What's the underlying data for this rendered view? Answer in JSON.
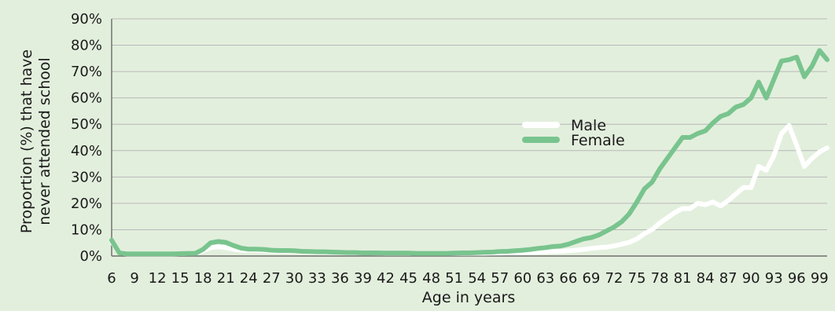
{
  "chart_data": {
    "type": "line",
    "xlabel": "Age in years",
    "ylabel": [
      "Proportion (%) that have",
      "never attended school"
    ],
    "ylim": [
      0,
      90
    ],
    "yticks": [
      "0%",
      "10%",
      "20%",
      "30%",
      "40%",
      "50%",
      "60%",
      "70%",
      "80%",
      "90%"
    ],
    "xticks": [
      "6",
      "9",
      "12",
      "15",
      "18",
      "21",
      "24",
      "27",
      "30",
      "33",
      "36",
      "39",
      "42",
      "45",
      "48",
      "51",
      "54",
      "57",
      "60",
      "63",
      "66",
      "69",
      "72",
      "75",
      "78",
      "81",
      "84",
      "87",
      "90",
      "93",
      "96",
      "99"
    ],
    "grid": true,
    "legend_position": "right-middle",
    "x": [
      6,
      7,
      8,
      9,
      10,
      11,
      12,
      13,
      14,
      15,
      16,
      17,
      18,
      19,
      20,
      21,
      22,
      23,
      24,
      25,
      26,
      27,
      28,
      29,
      30,
      31,
      32,
      33,
      34,
      35,
      36,
      37,
      38,
      39,
      40,
      41,
      42,
      43,
      44,
      45,
      46,
      47,
      48,
      49,
      50,
      51,
      52,
      53,
      54,
      55,
      56,
      57,
      58,
      59,
      60,
      61,
      62,
      63,
      64,
      65,
      66,
      67,
      68,
      69,
      70,
      71,
      72,
      73,
      74,
      75,
      76,
      77,
      78,
      79,
      80,
      81,
      82,
      83,
      84,
      85,
      86,
      87,
      88,
      89,
      90,
      91,
      92,
      93,
      94,
      95,
      96,
      97,
      98,
      99,
      100
    ],
    "series": [
      {
        "name": "Male",
        "color": "#ffffff",
        "values": [
          5.5,
          1.2,
          0.8,
          0.8,
          0.8,
          0.8,
          0.8,
          0.8,
          0.8,
          0.9,
          1.0,
          1.0,
          2.0,
          3.2,
          3.5,
          3.2,
          2.6,
          2.2,
          2.2,
          2.2,
          2.0,
          1.8,
          1.8,
          1.8,
          1.7,
          1.6,
          1.5,
          1.4,
          1.4,
          1.4,
          1.3,
          1.2,
          1.2,
          1.2,
          1.2,
          1.1,
          1.0,
          1.0,
          1.0,
          1.0,
          1.0,
          1.0,
          1.0,
          1.0,
          1.0,
          1.0,
          1.0,
          1.0,
          1.0,
          1.0,
          1.1,
          1.1,
          1.2,
          1.2,
          1.3,
          1.4,
          1.5,
          1.6,
          1.7,
          1.8,
          2.0,
          2.2,
          2.5,
          2.9,
          3.2,
          3.4,
          3.8,
          4.5,
          5.2,
          6.5,
          8.5,
          10.0,
          12.5,
          14.5,
          16.5,
          18.0,
          18.0,
          20.0,
          19.5,
          20.5,
          19.0,
          21.0,
          23.5,
          26.0,
          26.0,
          34.0,
          32.5,
          38.0,
          46.5,
          49.5,
          42.0,
          34.0,
          37.0,
          39.5,
          41.0
        ]
      },
      {
        "name": "Female",
        "color": "#79c48e",
        "values": [
          6.0,
          1.2,
          0.8,
          0.8,
          0.8,
          0.8,
          0.8,
          0.8,
          0.8,
          0.9,
          1.0,
          1.0,
          2.5,
          5.0,
          5.5,
          5.2,
          4.0,
          3.0,
          2.6,
          2.6,
          2.5,
          2.2,
          2.1,
          2.1,
          2.0,
          1.8,
          1.7,
          1.6,
          1.6,
          1.5,
          1.4,
          1.3,
          1.3,
          1.2,
          1.2,
          1.2,
          1.1,
          1.1,
          1.1,
          1.1,
          1.0,
          1.0,
          1.0,
          1.0,
          1.0,
          1.1,
          1.2,
          1.2,
          1.3,
          1.4,
          1.5,
          1.7,
          1.8,
          2.0,
          2.2,
          2.5,
          2.9,
          3.2,
          3.6,
          3.8,
          4.5,
          5.5,
          6.5,
          7.0,
          8.0,
          9.5,
          11.0,
          13.0,
          16.0,
          20.5,
          25.5,
          28.0,
          33.0,
          37.0,
          41.0,
          45.0,
          45.0,
          46.5,
          47.5,
          50.5,
          53.0,
          54.0,
          56.5,
          57.5,
          60.0,
          66.0,
          60.0,
          67.0,
          74.0,
          74.5,
          75.5,
          68.0,
          72.0,
          78.0,
          74.5
        ]
      }
    ]
  }
}
